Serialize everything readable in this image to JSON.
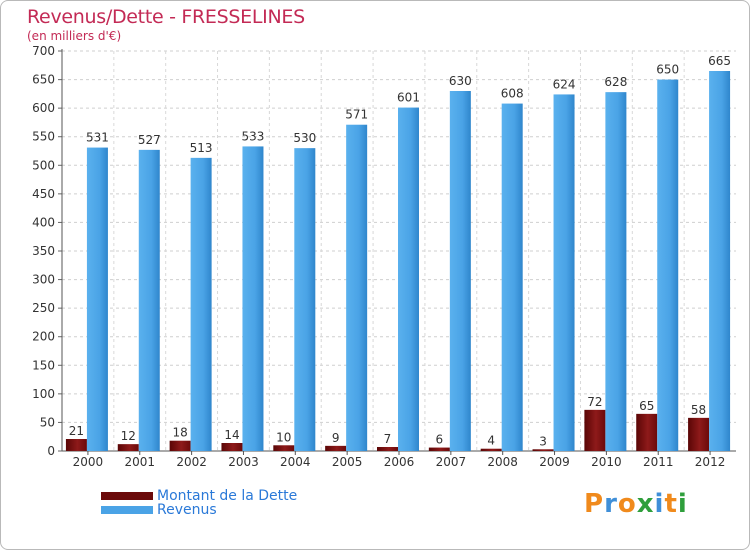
{
  "header": {
    "title": "Revenus/Dette - FRESSELINES",
    "subtitle": "(en milliers d'€)"
  },
  "chart_data": {
    "type": "bar",
    "categories": [
      "2000",
      "2001",
      "2002",
      "2003",
      "2004",
      "2005",
      "2006",
      "2007",
      "2008",
      "2009",
      "2010",
      "2011",
      "2012"
    ],
    "series": [
      {
        "name": "Montant de la Dette",
        "values": [
          21,
          12,
          18,
          14,
          10,
          9,
          7,
          6,
          4,
          3,
          72,
          65,
          58
        ],
        "color": "#7a0f0f"
      },
      {
        "name": "Revenus",
        "values": [
          531,
          527,
          513,
          533,
          530,
          571,
          601,
          630,
          608,
          624,
          628,
          650,
          665
        ],
        "color": "#4aa3e6"
      }
    ],
    "title": "Revenus/Dette - FRESSELINES",
    "subtitle": "(en milliers d'€)",
    "ylim": [
      0,
      700
    ],
    "yticks": [
      0,
      50,
      100,
      150,
      200,
      250,
      300,
      350,
      400,
      450,
      500,
      550,
      600,
      650,
      700
    ],
    "grid": true,
    "legend": "bottom-left"
  },
  "legend": {
    "items": [
      {
        "label": "Montant de la Dette",
        "color": "#6b0a0a"
      },
      {
        "label": "Revenus",
        "color": "#4aa3e6"
      }
    ]
  },
  "logo": {
    "letters": [
      "P",
      "r",
      "o",
      "x",
      "i",
      "t",
      "i"
    ],
    "colors": [
      "#f08a1c",
      "#3f8fd8",
      "#f08a1c",
      "#2f9f3c",
      "#3f8fd8",
      "#f08a1c",
      "#2f9f3c"
    ]
  }
}
